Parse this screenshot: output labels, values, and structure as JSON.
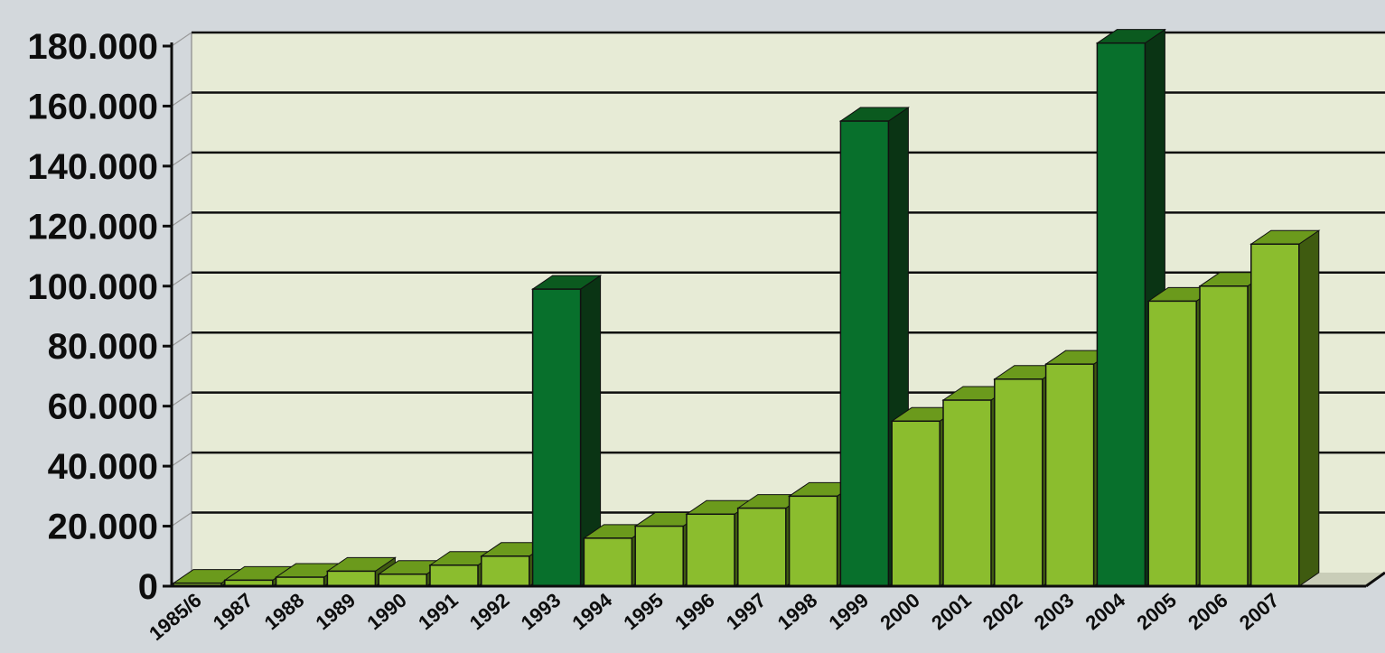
{
  "chart_data": {
    "type": "bar",
    "categories": [
      "1985/6",
      "1987",
      "1988",
      "1989",
      "1990",
      "1991",
      "1992",
      "1993",
      "1994",
      "1995",
      "1996",
      "1997",
      "1998",
      "1999",
      "2000",
      "2001",
      "2002",
      "2003",
      "2004",
      "2005",
      "2006",
      "2007"
    ],
    "values": [
      1000,
      2000,
      3000,
      5000,
      4000,
      7000,
      10000,
      99000,
      16000,
      20000,
      24000,
      26000,
      30000,
      155000,
      55000,
      62000,
      69000,
      74000,
      181000,
      95000,
      100000,
      114000
    ],
    "highlighted_categories": [
      "1993",
      "1999",
      "2004"
    ],
    "ylim": [
      0,
      180000
    ],
    "yticks": [
      0,
      20000,
      40000,
      60000,
      80000,
      100000,
      120000,
      140000,
      160000,
      180000
    ],
    "ytick_labels": [
      "0",
      "20.000",
      "40.000",
      "60.000",
      "80.000",
      "100.000",
      "120.000",
      "140.000",
      "160.000",
      "180.000"
    ],
    "title": "",
    "xlabel": "",
    "ylabel": "",
    "grid": true,
    "colors": {
      "background": "#d3d8dc",
      "plot_area": "#e7ebd6",
      "bar_front": "#8bbd2e",
      "bar_top": "#6b9a1c",
      "bar_side": "#3f5b10",
      "highlight_front": "#08702c",
      "highlight_top": "#0b5a1f",
      "highlight_side": "#0a3414",
      "gridline": "#0d0d0d",
      "text": "#0d0d0d"
    }
  }
}
